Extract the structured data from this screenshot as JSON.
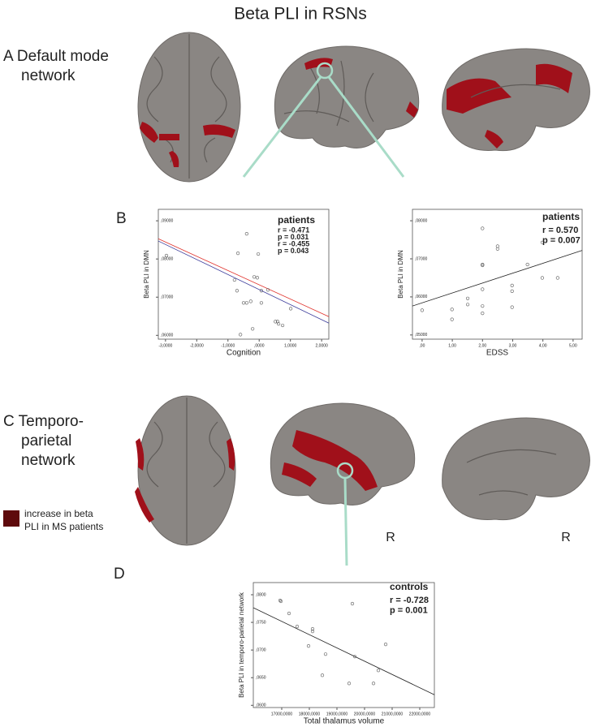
{
  "figure": {
    "title": "Beta PLI in RSNs",
    "panel_a": [
      "A Default mode",
      "network"
    ],
    "panel_b": "B",
    "panel_c": [
      "C Temporo-",
      "parietal",
      "network"
    ],
    "panel_d": "D",
    "legend": [
      "increase in beta",
      "PLI in MS patients"
    ],
    "side_labels": [
      "R",
      "R"
    ]
  },
  "chart_data": [
    {
      "type": "scatter",
      "x_label": "Cognition",
      "y_label": "Beta PLI in DMN",
      "xlim": [
        -3.23,
        2.23
      ],
      "ylim": [
        0.059,
        0.093
      ],
      "xticks": [
        {
          "value": -3,
          "label": "-3,0000"
        },
        {
          "value": -2,
          "label": "-2,0000"
        },
        {
          "value": -1,
          "label": "-1,0000"
        },
        {
          "value": 0,
          "label": ",0000"
        },
        {
          "value": 1,
          "label": "1,0000"
        },
        {
          "value": 2,
          "label": "2,0000"
        }
      ],
      "yticks": [
        {
          "value": 0.06,
          "label": ",06000"
        },
        {
          "value": 0.07,
          "label": ",07000"
        },
        {
          "value": 0.08,
          "label": ",08000"
        },
        {
          "value": 0.09,
          "label": ",09000"
        }
      ],
      "marker_color": "#555555",
      "x": [
        -2.97,
        -0.4,
        -0.68,
        -0.03,
        -0.79,
        -0.71,
        -0.16,
        -0.06,
        0.07,
        0.28,
        -0.5,
        -0.4,
        -0.27,
        0.07,
        0.52,
        0.59,
        0.62,
        0.75,
        1.01,
        -0.21,
        -0.6
      ],
      "values": [
        0.0809,
        0.0866,
        0.0815,
        0.0813,
        0.0745,
        0.0717,
        0.0753,
        0.0751,
        0.0717,
        0.0719,
        0.0685,
        0.0685,
        0.0689,
        0.0685,
        0.0636,
        0.0636,
        0.063,
        0.0626,
        0.067,
        0.0617,
        0.0602
      ],
      "fit_lines": [
        {
          "color": "#3a3a9a",
          "x": [
            -3.23,
            2.23
          ],
          "values": [
            0.0847,
            0.0632
          ]
        },
        {
          "color": "#e0302a",
          "x": [
            -3.23,
            2.23
          ],
          "values": [
            0.0853,
            0.0649
          ]
        }
      ],
      "annotations": [
        {
          "text": "patients",
          "color": "#555555"
        },
        {
          "text": "r = -0.471",
          "color": "#2b2bb0"
        },
        {
          "text": "p = 0.031",
          "color": "#2b2bb0"
        },
        {
          "text": "r = -0.455",
          "color": "#e0302a"
        },
        {
          "text": "p = 0.043",
          "color": "#e0302a"
        }
      ]
    },
    {
      "type": "scatter",
      "x_label": "EDSS",
      "y_label": "Beta PLI in DMN",
      "xlim": [
        -0.32,
        5.3
      ],
      "ylim": [
        0.0489,
        0.083
      ],
      "xticks": [
        {
          "value": 0,
          "label": ",00"
        },
        {
          "value": 1,
          "label": "1,00"
        },
        {
          "value": 2,
          "label": "2,00"
        },
        {
          "value": 3,
          "label": "3,00"
        },
        {
          "value": 4,
          "label": "4,00"
        },
        {
          "value": 5,
          "label": "5,00"
        }
      ],
      "yticks": [
        {
          "value": 0.05,
          "label": ",05000"
        },
        {
          "value": 0.06,
          "label": ",06000"
        },
        {
          "value": 0.07,
          "label": ",07000"
        },
        {
          "value": 0.08,
          "label": ",08000"
        }
      ],
      "marker_color": "#555555",
      "x": [
        0,
        0.99,
        0.99,
        1.51,
        1.51,
        2.0,
        2.0,
        2.0,
        2.0,
        2.0,
        2.0,
        2.5,
        2.5,
        2.98,
        2.98,
        2.98,
        3.49,
        3.98,
        3.98,
        4.49
      ],
      "values": [
        0.0565,
        0.0567,
        0.0541,
        0.0596,
        0.058,
        0.078,
        0.0685,
        0.0683,
        0.062,
        0.0576,
        0.0557,
        0.0733,
        0.0726,
        0.063,
        0.0615,
        0.0573,
        0.0685,
        0.0743,
        0.065,
        0.065
      ],
      "fit_lines": [
        {
          "color": "#222222",
          "x": [
            -0.32,
            5.3
          ],
          "values": [
            0.0576,
            0.0722
          ]
        }
      ],
      "annotations": [
        {
          "text": "patients",
          "color": "#555555"
        },
        {
          "text": "r = 0.570",
          "color": "#444444"
        },
        {
          "text": "p = 0.007",
          "color": "#444444"
        }
      ]
    },
    {
      "type": "scatter",
      "x_label": "Total thalamus volume",
      "y_label": "Beta PLI in temporo-parietal network",
      "xlim": [
        15971,
        22529
      ],
      "ylim": [
        0.0596,
        0.0822
      ],
      "xticks": [
        {
          "value": 17000,
          "label": "17000,0000"
        },
        {
          "value": 18000,
          "label": "18000,0000"
        },
        {
          "value": 19000,
          "label": "19000,0000"
        },
        {
          "value": 20000,
          "label": "20000,0000"
        },
        {
          "value": 21000,
          "label": "21000,0000"
        },
        {
          "value": 22000,
          "label": "22000,0000"
        }
      ],
      "yticks": [
        {
          "value": 0.06,
          "label": ",0600"
        },
        {
          "value": 0.065,
          "label": ",0650"
        },
        {
          "value": 0.07,
          "label": ",0700"
        },
        {
          "value": 0.075,
          "label": ",0750"
        },
        {
          "value": 0.08,
          "label": ",0800"
        }
      ],
      "marker_color": "#555555",
      "x": [
        16941,
        16971,
        17265,
        17559,
        18118,
        18118,
        17971,
        18588,
        18471,
        19559,
        19647,
        19441,
        20324,
        20500,
        20765
      ],
      "values": [
        0.07897,
        0.07882,
        0.07662,
        0.07426,
        0.07382,
        0.07338,
        0.07074,
        0.06926,
        0.06544,
        0.07838,
        0.06882,
        0.06397,
        0.06397,
        0.06632,
        0.07103
      ],
      "fit_lines": [
        {
          "color": "#222222",
          "x": [
            15971,
            22529
          ],
          "values": [
            0.07765,
            0.06191
          ]
        }
      ],
      "annotations": [
        {
          "text": "controls",
          "color": "#555555"
        },
        {
          "text": "r = -0.728",
          "color": "#444444"
        },
        {
          "text": "p = 0.001",
          "color": "#444444"
        }
      ]
    }
  ]
}
